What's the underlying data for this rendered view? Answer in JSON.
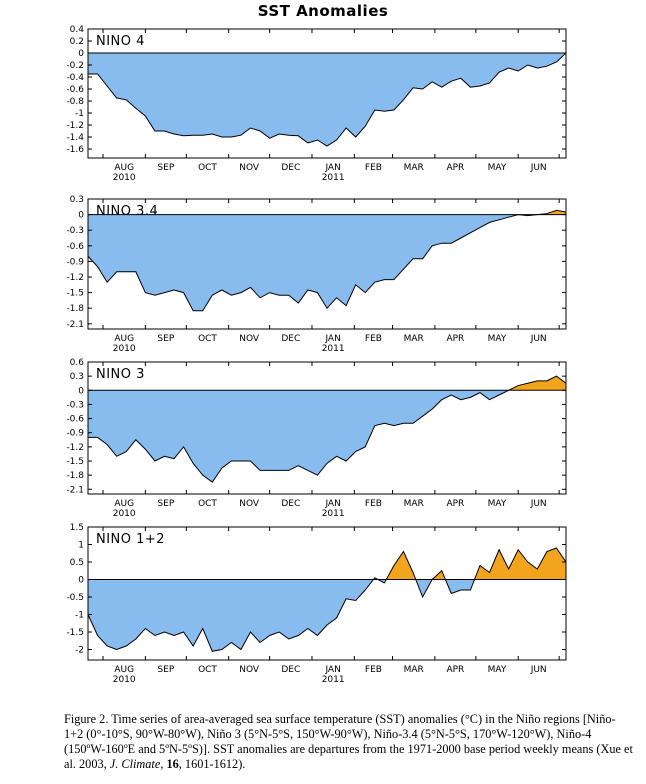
{
  "title": "SST Anomalies",
  "colors": {
    "negative": "#88bbee",
    "positive": "#f2a51c",
    "line": "#000000",
    "frame": "#000000"
  },
  "x_axis": {
    "months": [
      "AUG",
      "SEP",
      "OCT",
      "NOV",
      "DEC",
      "JAN",
      "FEB",
      "MAR",
      "APR",
      "MAY",
      "JUN"
    ],
    "years": [
      "2010",
      "2011"
    ]
  },
  "chart_data": [
    {
      "type": "area",
      "label": "NINO 4",
      "yticks": [
        "0.4",
        "0.2",
        "0",
        "-0.2",
        "-0.4",
        "-0.6",
        "-0.8",
        "-1",
        "-1.2",
        "-1.4",
        "-1.6"
      ],
      "ylim": [
        -1.75,
        0.4
      ],
      "x": [
        "2010-07-21",
        "2010-07-28",
        "2010-08-04",
        "2010-08-11",
        "2010-08-18",
        "2010-08-25",
        "2010-09-01",
        "2010-09-08",
        "2010-09-15",
        "2010-09-22",
        "2010-09-29",
        "2010-10-06",
        "2010-10-13",
        "2010-10-20",
        "2010-10-27",
        "2010-11-03",
        "2010-11-10",
        "2010-11-17",
        "2010-11-24",
        "2010-12-01",
        "2010-12-08",
        "2010-12-15",
        "2010-12-22",
        "2010-12-29",
        "2011-01-05",
        "2011-01-12",
        "2011-01-19",
        "2011-01-26",
        "2011-02-02",
        "2011-02-09",
        "2011-02-16",
        "2011-02-23",
        "2011-03-02",
        "2011-03-09",
        "2011-03-16",
        "2011-03-23",
        "2011-03-30",
        "2011-04-06",
        "2011-04-13",
        "2011-04-20",
        "2011-04-27",
        "2011-05-04",
        "2011-05-11",
        "2011-05-18",
        "2011-05-25",
        "2011-06-01",
        "2011-06-08",
        "2011-06-15",
        "2011-06-22",
        "2011-06-29",
        "2011-07-06"
      ],
      "y": [
        -0.35,
        -0.35,
        -0.55,
        -0.75,
        -0.78,
        -0.92,
        -1.05,
        -1.3,
        -1.3,
        -1.35,
        -1.38,
        -1.37,
        -1.37,
        -1.35,
        -1.4,
        -1.4,
        -1.37,
        -1.25,
        -1.3,
        -1.42,
        -1.35,
        -1.37,
        -1.38,
        -1.5,
        -1.45,
        -1.55,
        -1.45,
        -1.25,
        -1.4,
        -1.22,
        -0.95,
        -0.97,
        -0.95,
        -0.78,
        -0.58,
        -0.6,
        -0.48,
        -0.57,
        -0.47,
        -0.42,
        -0.57,
        -0.55,
        -0.5,
        -0.32,
        -0.25,
        -0.3,
        -0.2,
        -0.25,
        -0.22,
        -0.15,
        0.0
      ]
    },
    {
      "type": "area",
      "label": "NINO 3.4",
      "yticks": [
        "0.3",
        "0",
        "-0.3",
        "-0.6",
        "-0.9",
        "-1.2",
        "-1.5",
        "-1.8",
        "-2.1"
      ],
      "ylim": [
        -2.2,
        0.3
      ],
      "x": [
        "2010-07-21",
        "2010-07-28",
        "2010-08-04",
        "2010-08-11",
        "2010-08-18",
        "2010-08-25",
        "2010-09-01",
        "2010-09-08",
        "2010-09-15",
        "2010-09-22",
        "2010-09-29",
        "2010-10-06",
        "2010-10-13",
        "2010-10-20",
        "2010-10-27",
        "2010-11-03",
        "2010-11-10",
        "2010-11-17",
        "2010-11-24",
        "2010-12-01",
        "2010-12-08",
        "2010-12-15",
        "2010-12-22",
        "2010-12-29",
        "2011-01-05",
        "2011-01-12",
        "2011-01-19",
        "2011-01-26",
        "2011-02-02",
        "2011-02-09",
        "2011-02-16",
        "2011-02-23",
        "2011-03-02",
        "2011-03-09",
        "2011-03-16",
        "2011-03-23",
        "2011-03-30",
        "2011-04-06",
        "2011-04-13",
        "2011-04-20",
        "2011-04-27",
        "2011-05-04",
        "2011-05-11",
        "2011-05-18",
        "2011-05-25",
        "2011-06-01",
        "2011-06-08",
        "2011-06-15",
        "2011-06-22",
        "2011-06-29",
        "2011-07-06"
      ],
      "y": [
        -0.8,
        -1.0,
        -1.3,
        -1.1,
        -1.1,
        -1.1,
        -1.5,
        -1.55,
        -1.5,
        -1.45,
        -1.5,
        -1.85,
        -1.85,
        -1.55,
        -1.45,
        -1.55,
        -1.5,
        -1.4,
        -1.6,
        -1.5,
        -1.55,
        -1.55,
        -1.7,
        -1.45,
        -1.5,
        -1.8,
        -1.6,
        -1.75,
        -1.35,
        -1.5,
        -1.3,
        -1.25,
        -1.25,
        -1.05,
        -0.85,
        -0.85,
        -0.6,
        -0.55,
        -0.55,
        -0.45,
        -0.35,
        -0.25,
        -0.15,
        -0.1,
        -0.05,
        0.0,
        -0.02,
        0.0,
        0.02,
        0.08,
        0.05
      ]
    },
    {
      "type": "area",
      "label": "NINO 3",
      "yticks": [
        "0.6",
        "0.3",
        "0",
        "-0.3",
        "-0.6",
        "-0.9",
        "-1.2",
        "-1.5",
        "-1.8",
        "-2.1"
      ],
      "ylim": [
        -2.2,
        0.6
      ],
      "x": [
        "2010-07-21",
        "2010-07-28",
        "2010-08-04",
        "2010-08-11",
        "2010-08-18",
        "2010-08-25",
        "2010-09-01",
        "2010-09-08",
        "2010-09-15",
        "2010-09-22",
        "2010-09-29",
        "2010-10-06",
        "2010-10-13",
        "2010-10-20",
        "2010-10-27",
        "2010-11-03",
        "2010-11-10",
        "2010-11-17",
        "2010-11-24",
        "2010-12-01",
        "2010-12-08",
        "2010-12-15",
        "2010-12-22",
        "2010-12-29",
        "2011-01-05",
        "2011-01-12",
        "2011-01-19",
        "2011-01-26",
        "2011-02-02",
        "2011-02-09",
        "2011-02-16",
        "2011-02-23",
        "2011-03-02",
        "2011-03-09",
        "2011-03-16",
        "2011-03-23",
        "2011-03-30",
        "2011-04-06",
        "2011-04-13",
        "2011-04-20",
        "2011-04-27",
        "2011-05-04",
        "2011-05-11",
        "2011-05-18",
        "2011-05-25",
        "2011-06-01",
        "2011-06-08",
        "2011-06-15",
        "2011-06-22",
        "2011-06-29",
        "2011-07-06"
      ],
      "y": [
        -1.0,
        -1.0,
        -1.15,
        -1.4,
        -1.3,
        -1.05,
        -1.25,
        -1.5,
        -1.4,
        -1.45,
        -1.2,
        -1.55,
        -1.8,
        -1.95,
        -1.65,
        -1.5,
        -1.5,
        -1.5,
        -1.7,
        -1.7,
        -1.7,
        -1.7,
        -1.6,
        -1.7,
        -1.8,
        -1.55,
        -1.4,
        -1.5,
        -1.3,
        -1.2,
        -0.75,
        -0.7,
        -0.75,
        -0.7,
        -0.7,
        -0.55,
        -0.4,
        -0.2,
        -0.1,
        -0.2,
        -0.15,
        -0.05,
        -0.2,
        -0.1,
        0.0,
        0.1,
        0.15,
        0.2,
        0.2,
        0.3,
        0.15
      ]
    },
    {
      "type": "area",
      "label": "NINO 1+2",
      "yticks": [
        "1.5",
        "1",
        "0.5",
        "0",
        "-0.5",
        "-1",
        "-1.5",
        "-2"
      ],
      "ylim": [
        -2.3,
        1.5
      ],
      "x": [
        "2010-07-21",
        "2010-07-28",
        "2010-08-04",
        "2010-08-11",
        "2010-08-18",
        "2010-08-25",
        "2010-09-01",
        "2010-09-08",
        "2010-09-15",
        "2010-09-22",
        "2010-09-29",
        "2010-10-06",
        "2010-10-13",
        "2010-10-20",
        "2010-10-27",
        "2010-11-03",
        "2010-11-10",
        "2010-11-17",
        "2010-11-24",
        "2010-12-01",
        "2010-12-08",
        "2010-12-15",
        "2010-12-22",
        "2010-12-29",
        "2011-01-05",
        "2011-01-12",
        "2011-01-19",
        "2011-01-26",
        "2011-02-02",
        "2011-02-09",
        "2011-02-16",
        "2011-02-23",
        "2011-03-02",
        "2011-03-09",
        "2011-03-16",
        "2011-03-23",
        "2011-03-30",
        "2011-04-06",
        "2011-04-13",
        "2011-04-20",
        "2011-04-27",
        "2011-05-04",
        "2011-05-11",
        "2011-05-18",
        "2011-05-25",
        "2011-06-01",
        "2011-06-08",
        "2011-06-15",
        "2011-06-22",
        "2011-06-29",
        "2011-07-06"
      ],
      "y": [
        -1.0,
        -1.6,
        -1.9,
        -2.0,
        -1.9,
        -1.7,
        -1.4,
        -1.6,
        -1.5,
        -1.6,
        -1.5,
        -1.9,
        -1.4,
        -2.05,
        -2.0,
        -1.8,
        -2.0,
        -1.5,
        -1.8,
        -1.6,
        -1.5,
        -1.7,
        -1.6,
        -1.4,
        -1.6,
        -1.3,
        -1.1,
        -0.55,
        -0.6,
        -0.3,
        0.05,
        -0.1,
        0.4,
        0.8,
        0.2,
        -0.5,
        0.0,
        0.25,
        -0.4,
        -0.3,
        -0.3,
        0.4,
        0.2,
        0.85,
        0.3,
        0.85,
        0.5,
        0.3,
        0.8,
        0.9,
        0.5
      ]
    }
  ],
  "caption": {
    "part1": "Figure 2. Time series of area-averaged sea surface temperature (SST) anomalies (°C) in the Niño regions [Niño-1+2 (0°-10°S, 90°W-80°W), Niño 3 (5°N-5°S, 150°W-90°W), Niño-3.4 (5°N-5°S, 170°W-120°W), Niño-4 (150ºW-160ºE and 5ºN-5ºS)]. SST anomalies are departures from the 1971-2000 base period weekly means (Xue et al. 2003, ",
    "journal": "J. Climate",
    "sep1": ", ",
    "volume": "16",
    "part2": ", 1601-1612)."
  }
}
